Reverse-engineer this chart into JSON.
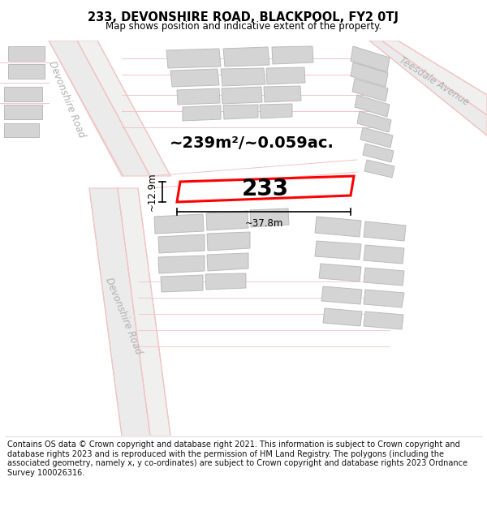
{
  "title": "233, DEVONSHIRE ROAD, BLACKPOOL, FY2 0TJ",
  "subtitle": "Map shows position and indicative extent of the property.",
  "footer": "Contains OS data © Crown copyright and database right 2021. This information is subject to Crown copyright and database rights 2023 and is reproduced with the permission of HM Land Registry. The polygons (including the associated geometry, namely x, y co-ordinates) are subject to Crown copyright and database rights 2023 Ordnance Survey 100026316.",
  "area_label": "~239m²/~0.059ac.",
  "width_label": "~37.8m",
  "height_label": "~12.9m",
  "number_label": "233",
  "road_color": "#f2c4c4",
  "road_center_color": "#e8e8e8",
  "building_fill": "#d4d4d4",
  "building_edge": "#bbbbbb",
  "highlight_color": "#ff0000",
  "road_label_color": "#b0b0b0",
  "map_bg": "#f7f7f4",
  "title_fontsize": 10.5,
  "subtitle_fontsize": 8.5,
  "footer_fontsize": 7.0,
  "area_fontsize": 14,
  "number_fontsize": 20,
  "dim_fontsize": 8.5
}
